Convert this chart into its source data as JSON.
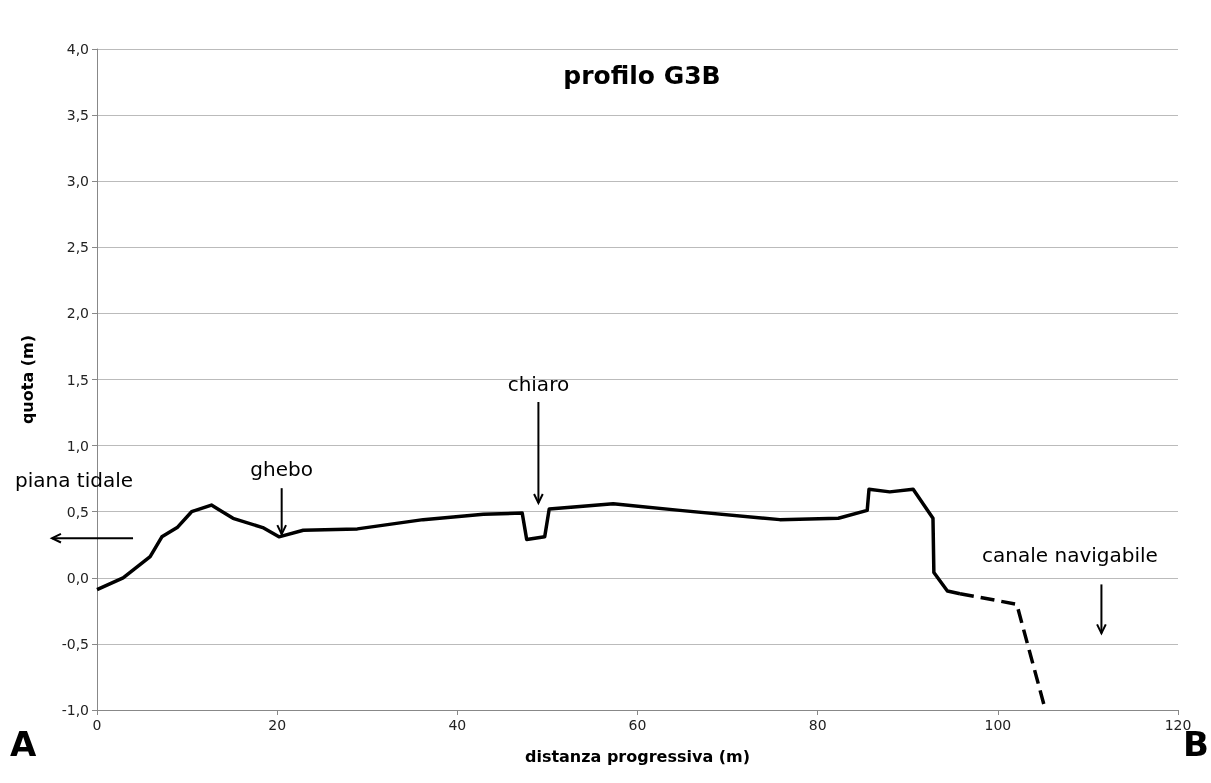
{
  "chart_data": {
    "type": "line",
    "title": "profilo G3B",
    "xlabel": "distanza progressiva (m)",
    "ylabel": "quota (m)",
    "series": [
      {
        "color": "#000000",
        "line_style": "solid",
        "x": [
          0,
          2.9,
          5.9,
          7.2,
          8.9,
          10.5,
          12.7,
          15.1,
          18.4,
          20.2,
          22.9,
          28.9,
          36.2,
          42.9,
          47.2,
          47.7,
          49.7,
          50.2,
          57.3,
          64.7,
          75.8,
          82.3,
          85.5,
          85.7,
          88.0,
          90.6,
          92.8,
          92.9,
          94.4,
          95.8
        ],
        "values": [
          -0.09,
          0.0,
          0.16,
          0.31,
          0.38,
          0.5,
          0.55,
          0.45,
          0.38,
          0.31,
          0.36,
          0.37,
          0.44,
          0.48,
          0.49,
          0.29,
          0.31,
          0.52,
          0.56,
          0.51,
          0.44,
          0.45,
          0.51,
          0.67,
          0.65,
          0.67,
          0.45,
          0.04,
          -0.1,
          -0.12
        ]
      },
      {
        "color": "#000000",
        "line_style": "dashed",
        "x": [
          95.8,
          102.1,
          105.2
        ],
        "values": [
          -0.12,
          -0.2,
          -0.98
        ]
      }
    ],
    "xlim": [
      0,
      120
    ],
    "xticks": [
      0,
      20,
      40,
      60,
      80,
      100,
      120
    ],
    "ylim": [
      -1,
      4
    ],
    "yticks": [
      {
        "value": -1,
        "label": "-1,0"
      },
      {
        "value": -0.5,
        "label": "-0,5"
      },
      {
        "value": 0,
        "label": "0,0"
      },
      {
        "value": 0.5,
        "label": "0,5"
      },
      {
        "value": 1,
        "label": "1,0"
      },
      {
        "value": 1.5,
        "label": "1,5"
      },
      {
        "value": 2,
        "label": "2,0"
      },
      {
        "value": 2.5,
        "label": "2,5"
      },
      {
        "value": 3,
        "label": "3,0"
      },
      {
        "value": 3.5,
        "label": "3,5"
      },
      {
        "value": 4,
        "label": "4,0"
      }
    ],
    "grid": "y",
    "marker": "none",
    "annotations": [
      "piana tidale",
      {
        "text": "ghebo",
        "x": 20.5,
        "y": 0.33
      },
      "chiaro",
      "canale navigabile",
      "A",
      "B"
    ]
  }
}
